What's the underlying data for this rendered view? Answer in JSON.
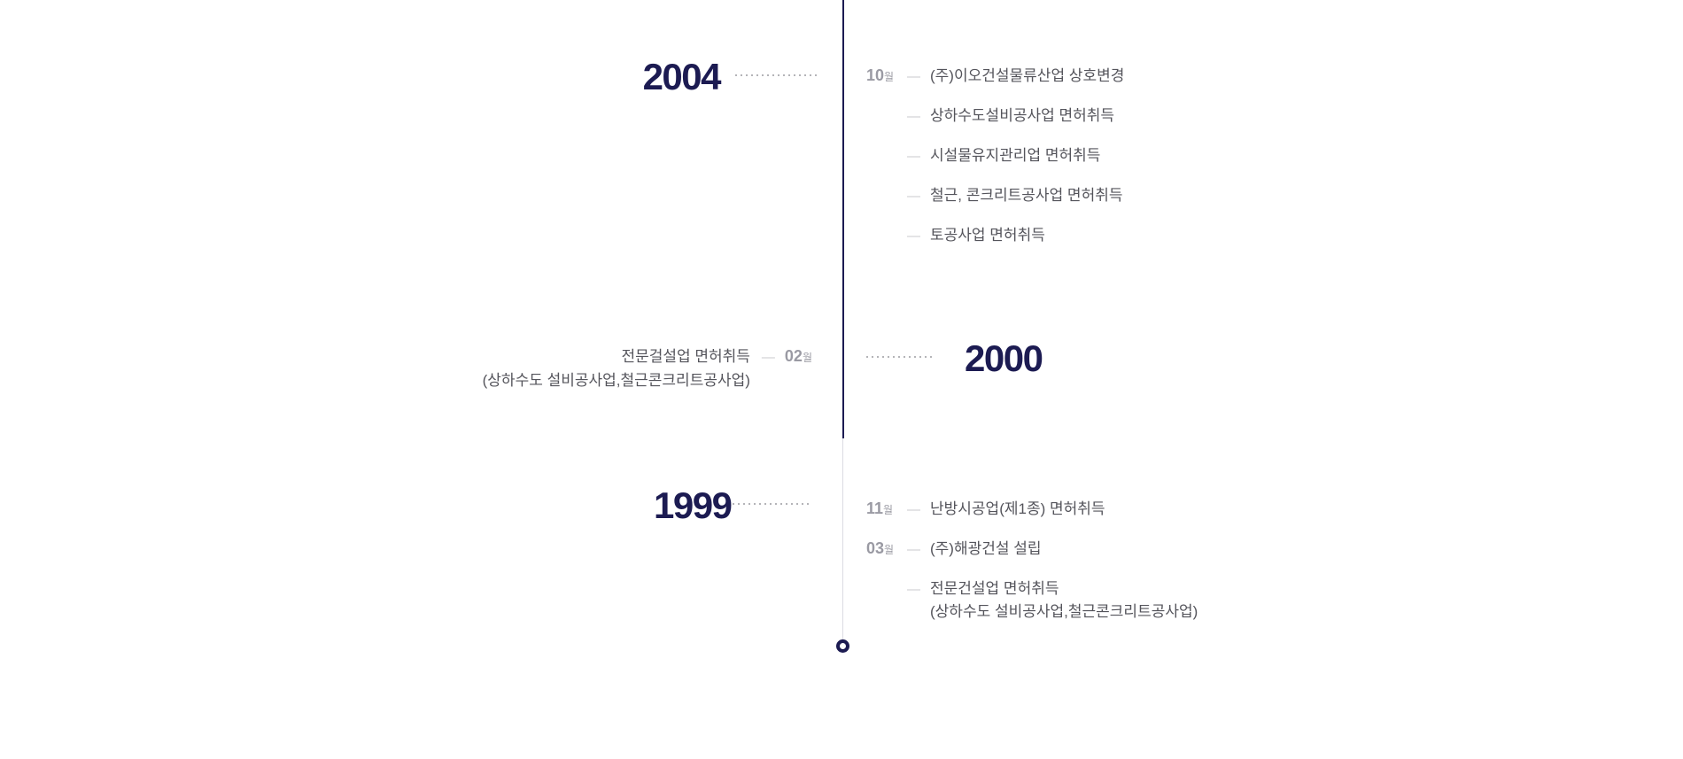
{
  "colors": {
    "accent_navy": "#1c1b52",
    "month_gray": "#9a9aa3",
    "dash_gray": "#c9c9cc",
    "text_gray": "#54545b",
    "leader_dot_gray": "#b4b4b8",
    "line_faded_gray": "#dcdce2",
    "background": "#ffffff"
  },
  "timeline": {
    "month_suffix": "월",
    "dash": "—",
    "sections": [
      {
        "year": "2004",
        "side": "year-left-entries-right",
        "entries": [
          {
            "month": "10",
            "text": "(주)이오건설물류산업 상호변경"
          },
          {
            "month": "",
            "text": "상하수도설비공사업 면허취득"
          },
          {
            "month": "",
            "text": "시설물유지관리업 면허취득"
          },
          {
            "month": "",
            "text": "철근, 콘크리트공사업 면허취득"
          },
          {
            "month": "",
            "text": "토공사업 면허취득"
          }
        ]
      },
      {
        "year": "2000",
        "side": "year-right-entries-left",
        "entries": [
          {
            "month": "02",
            "text": "전문걸설업 면허취득",
            "text2": "(상하수도 설비공사업,철근콘크리트공사업)"
          }
        ]
      },
      {
        "year": "1999",
        "side": "year-left-entries-right",
        "entries": [
          {
            "month": "11",
            "text": "난방시공업(제1종) 면허취득"
          },
          {
            "month": "03",
            "text": "(주)해광건설 설립"
          },
          {
            "month": "",
            "text": "전문건설업 면허취득",
            "text2": "(상하수도 설비공사업,철근콘크리트공사업)"
          }
        ]
      }
    ]
  }
}
